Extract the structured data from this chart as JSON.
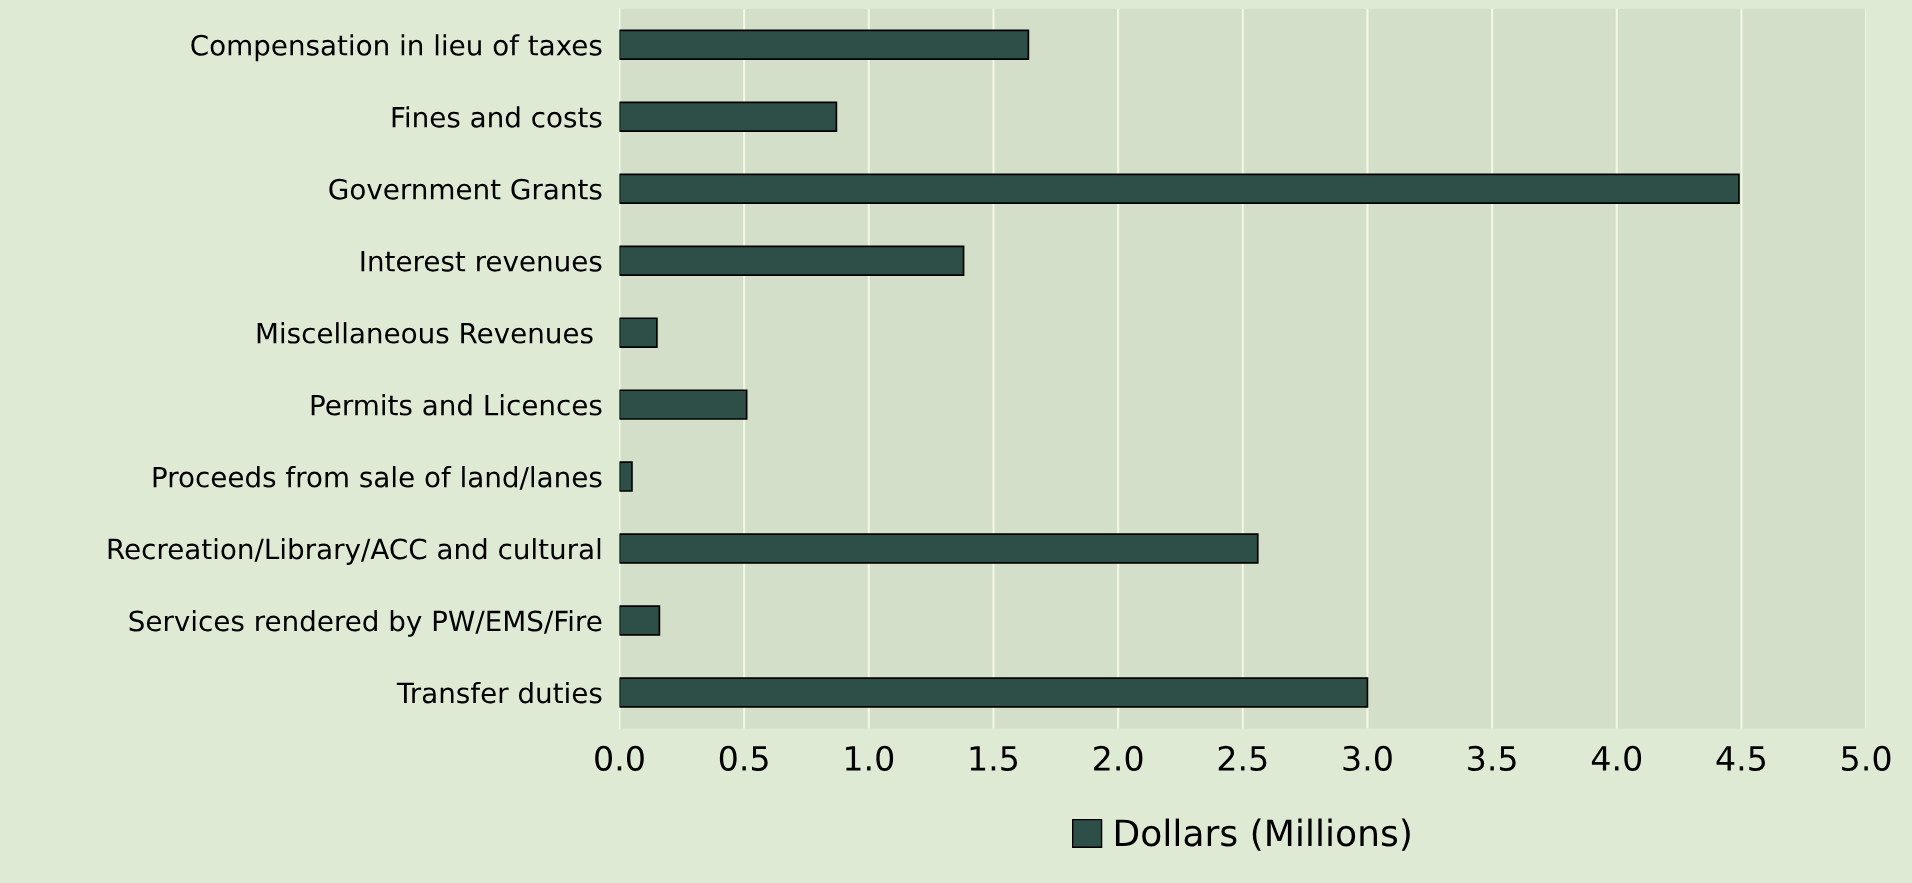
{
  "chart_data": {
    "type": "bar",
    "orientation": "horizontal",
    "categories": [
      "Compensation in lieu of taxes",
      "Fines and costs",
      "Government Grants",
      "Interest revenues",
      "Miscellaneous Revenues ",
      "Permits and Licences",
      "Proceeds from sale of land/lanes",
      "Recreation/Library/ACC and cultural",
      "Services rendered by PW/EMS/Fire",
      "Transfer duties"
    ],
    "series": [
      {
        "name": "Dollars (Millions)",
        "color": "#2d4f47",
        "values": [
          1.64,
          0.87,
          4.49,
          1.38,
          0.15,
          0.51,
          0.05,
          2.56,
          0.16,
          3.0
        ]
      }
    ],
    "xlim": [
      0,
      5
    ],
    "xticks": [
      {
        "value": 0,
        "label": "0.0"
      },
      {
        "value": 0.5,
        "label": "0.5"
      },
      {
        "value": 1,
        "label": "1.0"
      },
      {
        "value": 1.5,
        "label": "1.5"
      },
      {
        "value": 2,
        "label": "2.0"
      },
      {
        "value": 2.5,
        "label": "2.5"
      },
      {
        "value": 3,
        "label": "3.0"
      },
      {
        "value": 3.5,
        "label": "3.5"
      },
      {
        "value": 4,
        "label": "4.0"
      },
      {
        "value": 4.5,
        "label": "4.5"
      },
      {
        "value": 5,
        "label": "5.0"
      }
    ],
    "grid": "x",
    "legend": "bottom"
  }
}
